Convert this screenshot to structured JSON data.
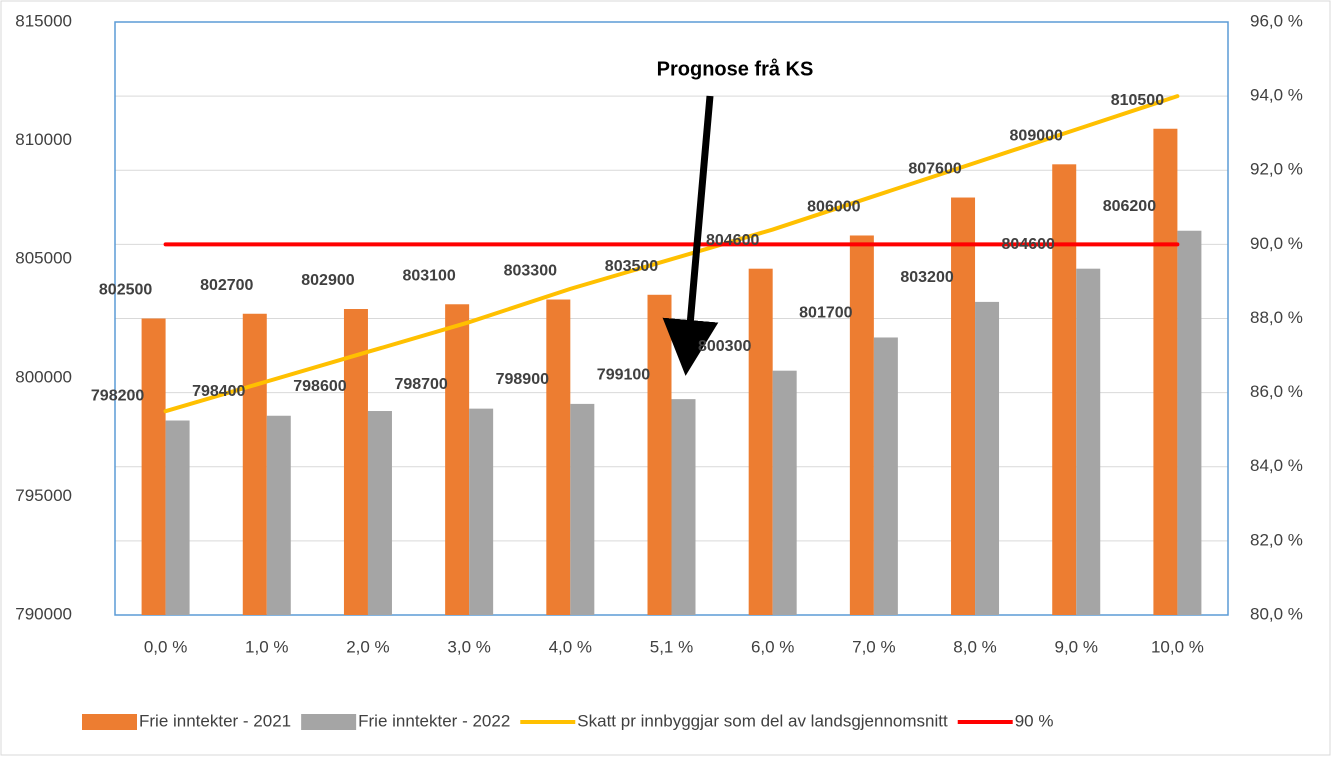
{
  "chart_data": {
    "type": "bar",
    "categories": [
      "0,0 %",
      "1,0 %",
      "2,0 %",
      "3,0 %",
      "4,0 %",
      "5,1 %",
      "6,0 %",
      "7,0 %",
      "8,0 %",
      "9,0 %",
      "10,0 %"
    ],
    "series": [
      {
        "name": "Frie inntekter - 2021",
        "color": "#ed7d31",
        "type": "bar",
        "values": [
          802500,
          802700,
          802900,
          803100,
          803300,
          803500,
          804600,
          806000,
          807600,
          809000,
          810500
        ]
      },
      {
        "name": "Frie inntekter - 2022",
        "color": "#a5a5a5",
        "type": "bar",
        "values": [
          798200,
          798400,
          798600,
          798700,
          798900,
          799100,
          800300,
          801700,
          803200,
          804600,
          806200
        ]
      },
      {
        "name": "Skatt pr innbyggjar som del av landsgjennomsnitt",
        "color": "#ffc000",
        "type": "line",
        "axis": "y2",
        "values": [
          85.5,
          86.3,
          87.1,
          87.9,
          88.8,
          89.6,
          90.4,
          91.3,
          92.2,
          93.1,
          94.0
        ]
      },
      {
        "name": "90 %",
        "color": "#ff0000",
        "type": "line",
        "axis": "y2",
        "values": [
          90,
          90,
          90,
          90,
          90,
          90,
          90,
          90,
          90,
          90,
          90
        ]
      }
    ],
    "ylim": [
      790000,
      815000
    ],
    "yticks": [
      790000,
      795000,
      800000,
      805000,
      810000,
      815000
    ],
    "y2lim": [
      80,
      96
    ],
    "y2ticks": [
      {
        "value": 80,
        "label": "80,0 %"
      },
      {
        "value": 82,
        "label": "82,0 %"
      },
      {
        "value": 84,
        "label": "84,0 %"
      },
      {
        "value": 86,
        "label": "86,0 %"
      },
      {
        "value": 88,
        "label": "88,0 %"
      },
      {
        "value": 90,
        "label": "90,0 %"
      },
      {
        "value": 92,
        "label": "92,0 %"
      },
      {
        "value": 94,
        "label": "94,0 %"
      },
      {
        "value": 96,
        "label": "96,0 %"
      }
    ],
    "annotation": "Prognose frå KS",
    "grid": true,
    "legend": "bottom"
  }
}
